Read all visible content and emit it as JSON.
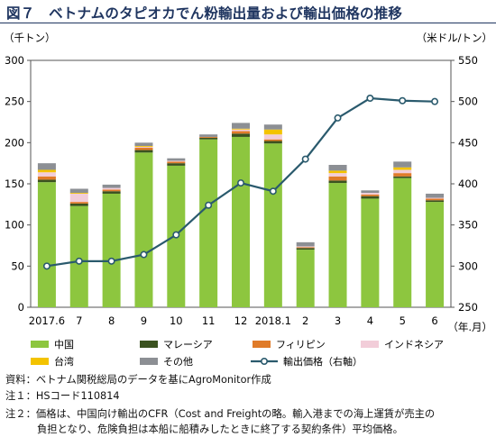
{
  "title": "図７　ベトナムのタピオカでん粉輸出量および輸出価格の推移",
  "chart_data": {
    "type": "bar",
    "stacked": true,
    "left_unit": "（千トン）",
    "right_unit": "（米ドル/トン）",
    "x_unit": "（年.月）",
    "categories": [
      "2017.6",
      "7",
      "8",
      "9",
      "10",
      "11",
      "12",
      "2018.1",
      "2",
      "3",
      "4",
      "5",
      "6"
    ],
    "ylim": [
      0,
      300
    ],
    "yticks": [
      0,
      50,
      100,
      150,
      200,
      250,
      300
    ],
    "y2lim": [
      250,
      550
    ],
    "y2ticks": [
      250,
      300,
      350,
      400,
      450,
      500,
      550
    ],
    "grid": false,
    "series": [
      {
        "name": "中国",
        "color": "#8dc63f",
        "values": [
          152,
          123,
          138,
          188,
          172,
          204,
          207,
          199,
          70,
          151,
          132,
          157,
          128
        ]
      },
      {
        "name": "マレーシア",
        "color": "#3b5320",
        "values": [
          3,
          3,
          3,
          3,
          3,
          2,
          4,
          3,
          2,
          3,
          3,
          2,
          2
        ]
      },
      {
        "name": "フィリピン",
        "color": "#e07b29",
        "values": [
          4,
          2,
          2,
          3,
          2,
          1,
          3,
          2,
          1,
          5,
          2,
          4,
          2
        ]
      },
      {
        "name": "インドネシア",
        "color": "#f2cdd9",
        "values": [
          5,
          10,
          2,
          1,
          1,
          0,
          2,
          6,
          1,
          4,
          2,
          4,
          1
        ]
      },
      {
        "name": "台湾",
        "color": "#f3c300",
        "values": [
          3,
          1,
          0,
          1,
          0,
          0,
          1,
          6,
          0,
          3,
          0,
          3,
          0
        ]
      },
      {
        "name": "その他",
        "color": "#8c8f94",
        "values": [
          8,
          5,
          4,
          4,
          3,
          3,
          7,
          6,
          5,
          7,
          3,
          7,
          5
        ]
      }
    ],
    "line": {
      "name": "輸出価格（右軸）",
      "color": "#2a5a6d",
      "values": [
        300,
        306,
        306,
        314,
        338,
        374,
        401,
        391,
        430,
        480,
        504,
        501,
        500
      ]
    }
  },
  "notes": [
    {
      "label": "資料：",
      "text": "ベトナム関税総局のデータを基にAgroMonitor作成"
    },
    {
      "label": "注１：",
      "text": "HSコード110814"
    },
    {
      "label": "注２：",
      "text": "価格は、中国向け輸出のCFR（Cost and Freightの略。輸入港までの海上運賃が売主の"
    },
    {
      "label": "",
      "text": "負担となり、危険負担は本船に船積みしたときに終了する契約条件）平均価格。"
    }
  ]
}
